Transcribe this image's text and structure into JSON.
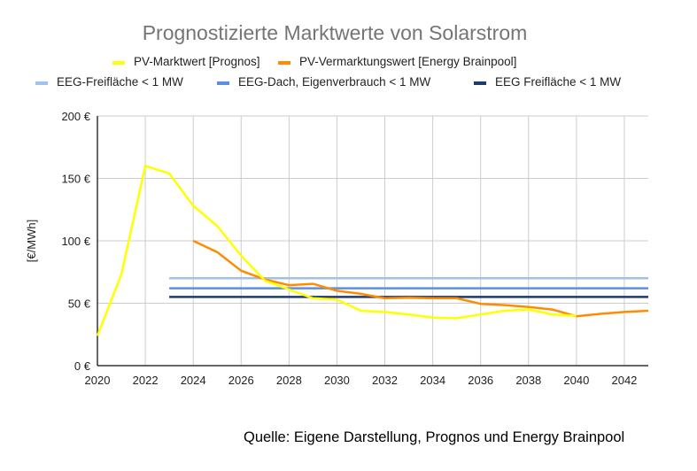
{
  "chart_data": {
    "type": "line",
    "title": "Prognostizierte Marktwerte von Solarstrom",
    "xlabel": "",
    "ylabel": "[€/MWh]",
    "xlim": [
      2020,
      2043
    ],
    "ylim": [
      0,
      200
    ],
    "x_ticks": [
      2020,
      2022,
      2024,
      2026,
      2028,
      2030,
      2032,
      2034,
      2036,
      2038,
      2040,
      2042
    ],
    "y_ticks": [
      0,
      50,
      100,
      150,
      200
    ],
    "y_tick_labels": [
      "0 €",
      "50 €",
      "100 €",
      "150 €",
      "200 €"
    ],
    "grid": true,
    "legend_position": "top-center",
    "series": [
      {
        "name": "PV-Marktwert [Prognos]",
        "color": "#ffff00",
        "x": [
          2020,
          2021,
          2022,
          2023,
          2024,
          2025,
          2026,
          2027,
          2028,
          2029,
          2030,
          2031,
          2032,
          2033,
          2034,
          2035,
          2036,
          2037,
          2038,
          2039,
          2040
        ],
        "values": [
          24,
          73,
          160,
          154,
          128,
          112,
          88,
          68,
          61,
          54,
          53,
          44,
          43,
          41,
          38.5,
          38,
          41,
          44,
          45,
          41,
          40
        ]
      },
      {
        "name": "PV-Vermarktungswert [Energy Brainpool]",
        "color": "#ff8c00",
        "x": [
          2024,
          2025,
          2026,
          2027,
          2028,
          2029,
          2030,
          2031,
          2032,
          2033,
          2034,
          2035,
          2036,
          2037,
          2038,
          2039,
          2040,
          2041,
          2042,
          2043
        ],
        "values": [
          100,
          91,
          76,
          69,
          64.5,
          65.5,
          60,
          57.5,
          54,
          54.5,
          54,
          54,
          49.5,
          48.5,
          47,
          45,
          39.5,
          41.5,
          43,
          44
        ]
      },
      {
        "name": "EEG-Freifläche < 1 MW",
        "color": "#9fc0f0",
        "x": [
          2023,
          2043
        ],
        "values": [
          70,
          70
        ]
      },
      {
        "name": "EEG-Dach, Eigenverbrauch < 1 MW",
        "color": "#5b8fe0",
        "x": [
          2023,
          2043
        ],
        "values": [
          62,
          62
        ]
      },
      {
        "name": "EEG Freifläche < 1 MW",
        "color": "#1f3a6e",
        "x": [
          2023,
          2043
        ],
        "values": [
          55,
          55
        ]
      }
    ]
  },
  "source_note": "Quelle: Eigene Darstellung, Prognos und Energy Brainpool"
}
